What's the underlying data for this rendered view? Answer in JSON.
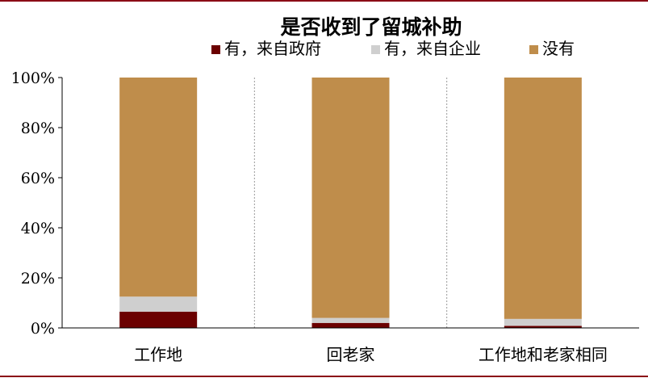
{
  "chart_data": {
    "type": "bar",
    "stacked": true,
    "title": "是否收到了留城补助",
    "categories": [
      "工作地",
      "回老家",
      "工作地和老家相同"
    ],
    "series": [
      {
        "name": "有，来自政府",
        "color": "#6b0000",
        "values": [
          6.5,
          2.0,
          0.8
        ]
      },
      {
        "name": "有，来自企业",
        "color": "#cfcfcf",
        "values": [
          6.0,
          2.0,
          2.8
        ]
      },
      {
        "name": "没有",
        "color": "#bf8d4b",
        "values": [
          87.5,
          96.0,
          96.4
        ]
      }
    ],
    "ylim": [
      0,
      100
    ],
    "yticks": [
      0,
      20,
      40,
      60,
      80,
      100
    ],
    "ytick_labels": [
      "0%",
      "20%",
      "40%",
      "60%",
      "80%",
      "100%"
    ],
    "legend_position": "top",
    "grid": "vertical-dashed-separators"
  }
}
